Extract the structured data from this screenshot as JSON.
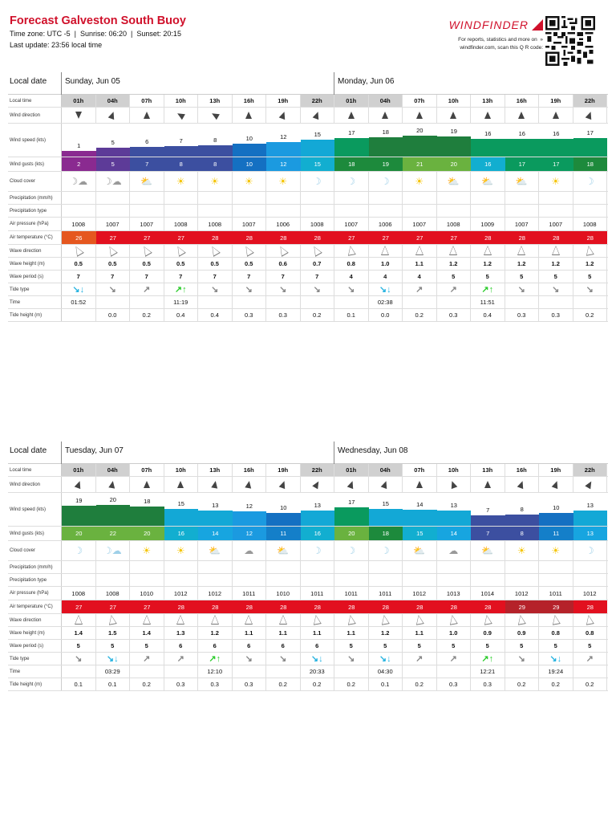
{
  "header": {
    "title": "Forecast Galveston South Buoy",
    "info_line": "Time zone: UTC -5  |  Sunrise: 06:20  |  Sunset: 20:15",
    "update_line": "Last update: 23:56 local time"
  },
  "brand": {
    "logo": "WINDFINDER",
    "note_line1": "For reports, statistics and more on  »",
    "note_line2": "windfinder.com, scan this Q R code:",
    "qr_icon": "qr-code-icon"
  },
  "labels": {
    "local_date": "Local date",
    "local_time": "Local time",
    "wind_direction": "Wind direction",
    "wind_speed": "Wind speed (kts)",
    "wind_gusts": "Wind gusts (kts)",
    "cloud_cover": "Cloud cover",
    "precipitation": "Precipitation (mm/h)",
    "precipitation_type": "Precipitation type",
    "air_pressure": "Air pressure (hPa)",
    "air_temperature": "Air temperature (°C)",
    "wave_direction": "Wave direction",
    "wave_height": "Wave height (m)",
    "wave_period": "Wave period (s)",
    "tide_type": "Tide type",
    "time": "Time",
    "tide_height": "Tide height (m)"
  },
  "colors": {
    "brand_red": "#d0112b",
    "temp_26": "#e5571f",
    "temp_27_28": "#e2101f",
    "temp_29": "#b5222a"
  },
  "blocks": [
    {
      "days": [
        "Sunday, Jun 05",
        "Monday, Jun 06"
      ],
      "times": [
        "01h",
        "04h",
        "07h",
        "10h",
        "13h",
        "16h",
        "19h",
        "22h",
        "01h",
        "04h",
        "07h",
        "10h",
        "13h",
        "16h",
        "19h",
        "22h"
      ],
      "night": [
        true,
        true,
        false,
        false,
        false,
        false,
        false,
        true,
        true,
        true,
        false,
        false,
        false,
        false,
        false,
        true
      ],
      "wind_dir_deg": [
        180,
        20,
        0,
        -60,
        -60,
        0,
        20,
        20,
        0,
        0,
        0,
        0,
        0,
        0,
        0,
        20
      ],
      "wind_speed": [
        1,
        5,
        6,
        7,
        8,
        10,
        12,
        15,
        17,
        18,
        20,
        19,
        16,
        16,
        16,
        17
      ],
      "wind_gusts": [
        2,
        5,
        7,
        8,
        8,
        10,
        12,
        15,
        18,
        19,
        21,
        20,
        16,
        17,
        17,
        18
      ],
      "cloud": [
        "moon-cloud",
        "moon-cloud",
        "sun-cloud",
        "sun",
        "sun",
        "sun",
        "sun",
        "moon",
        "moon",
        "moon",
        "sun",
        "sun-cloud-small",
        "sun-cloud-small",
        "sun-cloud-small",
        "sun",
        "moon"
      ],
      "precip": [
        "",
        "",
        "",
        "",
        "",
        "",
        "",
        "",
        "",
        "",
        "",
        "",
        "",
        "",
        "",
        ""
      ],
      "precip_type": [
        "",
        "",
        "",
        "",
        "",
        "",
        "",
        "",
        "",
        "",
        "",
        "",
        "",
        "",
        "",
        ""
      ],
      "pressure": [
        1008,
        1007,
        1007,
        1008,
        1008,
        1007,
        1006,
        1008,
        1007,
        1006,
        1007,
        1008,
        1009,
        1007,
        1007,
        1008
      ],
      "temperature": [
        26,
        27,
        27,
        27,
        28,
        28,
        28,
        28,
        27,
        27,
        27,
        27,
        28,
        28,
        28,
        28
      ],
      "wave_dir_deg": [
        -30,
        -30,
        -30,
        -30,
        -30,
        -30,
        -30,
        -30,
        -10,
        0,
        0,
        0,
        0,
        0,
        0,
        -10
      ],
      "wave_height": [
        "0.5",
        "0.5",
        "0.5",
        "0.5",
        "0.5",
        "0.5",
        "0.6",
        "0.7",
        "0.8",
        "1.0",
        "1.1",
        "1.2",
        "1.2",
        "1.2",
        "1.2",
        "1.2"
      ],
      "wave_period": [
        "7",
        "7",
        "7",
        "7",
        "7",
        "7",
        "7",
        "7",
        "4",
        "4",
        "4",
        "5",
        "5",
        "5",
        "5",
        "5"
      ],
      "tide_type": [
        "low",
        "falling",
        "rising",
        "high",
        "falling",
        "falling",
        "falling",
        "falling",
        "falling",
        "low",
        "rising",
        "rising",
        "high",
        "falling",
        "falling",
        "falling"
      ],
      "tide_time": [
        "01:52",
        "",
        "",
        "11:19",
        "",
        "",
        "",
        "",
        "",
        "02:38",
        "",
        "",
        "11:51",
        "",
        "",
        ""
      ],
      "tide_height": [
        "",
        "0.0",
        "0.2",
        "0.4",
        "0.4",
        "0.3",
        "0.3",
        "0.2",
        "0.1",
        "0.0",
        "0.2",
        "0.3",
        "0.4",
        "0.3",
        "0.3",
        "0.2"
      ]
    },
    {
      "days": [
        "Tuesday, Jun 07",
        "Wednesday, Jun 08"
      ],
      "times": [
        "01h",
        "04h",
        "07h",
        "10h",
        "13h",
        "16h",
        "19h",
        "22h",
        "01h",
        "04h",
        "07h",
        "10h",
        "13h",
        "16h",
        "19h",
        "22h"
      ],
      "night": [
        true,
        true,
        false,
        false,
        false,
        false,
        false,
        true,
        true,
        true,
        false,
        false,
        false,
        false,
        false,
        true
      ],
      "wind_dir_deg": [
        20,
        10,
        0,
        0,
        10,
        10,
        20,
        30,
        20,
        20,
        0,
        -20,
        0,
        20,
        20,
        30
      ],
      "wind_speed": [
        19,
        20,
        18,
        15,
        13,
        12,
        10,
        13,
        17,
        15,
        14,
        13,
        7,
        8,
        10,
        13
      ],
      "wind_gusts": [
        20,
        22,
        20,
        16,
        14,
        12,
        11,
        16,
        20,
        18,
        15,
        14,
        7,
        8,
        11,
        13
      ],
      "cloud": [
        "moon",
        "moon-cloud-small",
        "sun",
        "sun",
        "sun-cloud",
        "cloud",
        "sun-cloud-small",
        "moon",
        "moon",
        "moon",
        "sun-cloud",
        "cloud",
        "sun-cloud",
        "sun",
        "sun",
        "moon"
      ],
      "precip": [
        "",
        "",
        "",
        "",
        "",
        "",
        "",
        "",
        "",
        "",
        "",
        "",
        "",
        "",
        "",
        ""
      ],
      "precip_type": [
        "",
        "",
        "",
        "",
        "",
        "",
        "",
        "",
        "",
        "",
        "",
        "",
        "",
        "",
        "",
        ""
      ],
      "pressure": [
        1008,
        1008,
        1010,
        1012,
        1012,
        1011,
        1010,
        1011,
        1011,
        1011,
        1012,
        1013,
        1014,
        1012,
        1011,
        1012
      ],
      "temperature": [
        27,
        27,
        27,
        28,
        28,
        28,
        28,
        28,
        28,
        28,
        28,
        28,
        28,
        29,
        29,
        28
      ],
      "wave_dir_deg": [
        0,
        -10,
        0,
        0,
        0,
        0,
        0,
        -10,
        -10,
        -10,
        -10,
        -10,
        -10,
        -10,
        -10,
        -10
      ],
      "wave_height": [
        "1.4",
        "1.5",
        "1.4",
        "1.3",
        "1.2",
        "1.1",
        "1.1",
        "1.1",
        "1.1",
        "1.2",
        "1.1",
        "1.0",
        "0.9",
        "0.9",
        "0.8",
        "0.8"
      ],
      "wave_period": [
        "5",
        "5",
        "5",
        "6",
        "6",
        "6",
        "6",
        "6",
        "5",
        "5",
        "5",
        "5",
        "5",
        "5",
        "5",
        "5"
      ],
      "tide_type": [
        "falling",
        "low",
        "rising",
        "rising",
        "high",
        "falling",
        "falling",
        "low",
        "falling",
        "low",
        "rising",
        "rising",
        "high",
        "falling",
        "low",
        "rising"
      ],
      "tide_time": [
        "",
        "03:29",
        "",
        "",
        "12:10",
        "",
        "",
        "20:33",
        "",
        "04:30",
        "",
        "",
        "12:21",
        "",
        "19:24",
        ""
      ],
      "tide_height": [
        "0.1",
        "0.1",
        "0.2",
        "0.3",
        "0.3",
        "0.3",
        "0.2",
        "0.2",
        "0.2",
        "0.1",
        "0.2",
        "0.3",
        "0.3",
        "0.2",
        "0.2",
        "0.2"
      ]
    }
  ]
}
